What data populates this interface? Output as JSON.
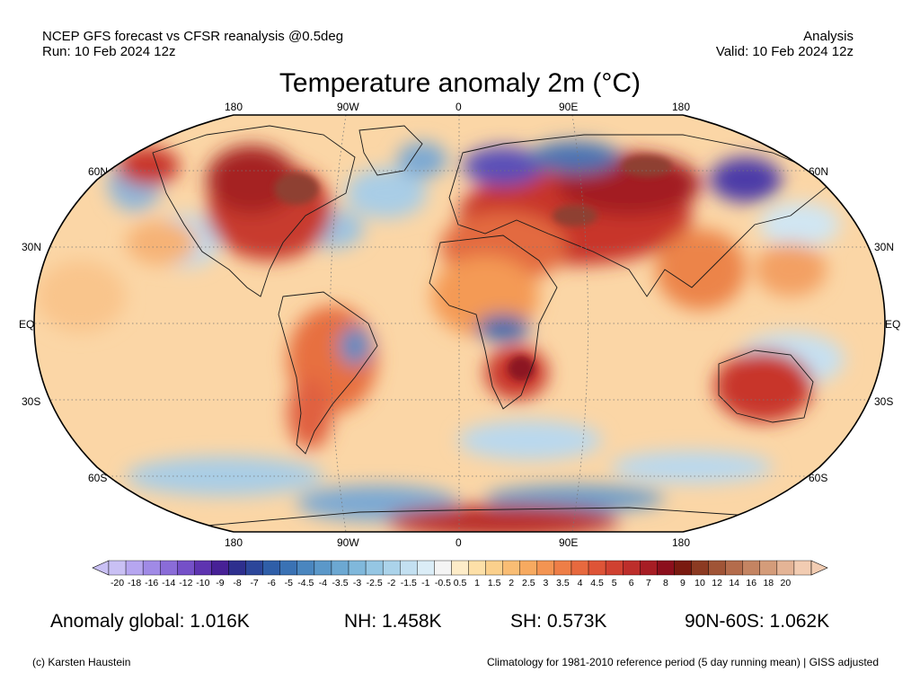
{
  "header": {
    "left_line1": "NCEP GFS forecast vs CFSR reanalysis @0.5deg",
    "left_line2": "Run: 10 Feb 2024 12z",
    "right_line1": "Analysis",
    "right_line2": "Valid: 10 Feb 2024 12z"
  },
  "title": "Temperature anomaly 2m (°C)",
  "map": {
    "projection": "Robinson",
    "lon_labels": [
      "180",
      "90W",
      "0",
      "90E",
      "180"
    ],
    "lat_labels": [
      "60N",
      "30N",
      "EQ",
      "30S",
      "60S"
    ],
    "grid_lines": "dotted"
  },
  "colorbar": {
    "ticks": [
      "-20",
      "-18",
      "-16",
      "-14",
      "-12",
      "-10",
      "-9",
      "-8",
      "-7",
      "-6",
      "-5",
      "-4.5",
      "-4",
      "-3.5",
      "-3",
      "-2.5",
      "-2",
      "-1.5",
      "-1",
      "-0.5",
      "0.5",
      "1",
      "1.5",
      "2",
      "2.5",
      "3",
      "3.5",
      "4",
      "4.5",
      "5",
      "6",
      "7",
      "8",
      "9",
      "10",
      "12",
      "14",
      "16",
      "18",
      "20"
    ],
    "colors": [
      "#c9c0f4",
      "#b6a6f0",
      "#a08ae6",
      "#8a6cd8",
      "#7550c8",
      "#5e34b0",
      "#472196",
      "#2e2f8e",
      "#2c469a",
      "#2f5ea8",
      "#3a72b4",
      "#4a86bf",
      "#5b98c9",
      "#6ca8d2",
      "#80b8db",
      "#95c6e3",
      "#abd3ea",
      "#c3e0f1",
      "#dbedf7",
      "#f4f4f4",
      "#fdecc8",
      "#fde0a8",
      "#fbd08c",
      "#f9bd74",
      "#f7aa60",
      "#f39452",
      "#ee7e47",
      "#e7693e",
      "#de5437",
      "#d04131",
      "#bd2e2b",
      "#a71d24",
      "#8c0f1c",
      "#7a1a10",
      "#8c3a22",
      "#a05436",
      "#b46c4c",
      "#c48462",
      "#d49c7a",
      "#e4b496",
      "#f2ccb2"
    ]
  },
  "stats": {
    "global": "Anomaly global: 1.016K",
    "nh": "NH: 1.458K",
    "sh": "SH: 0.573K",
    "arctic": "90N-60S: 1.062K"
  },
  "footer": {
    "left": "(c) Karsten Haustein",
    "right": "Climatology for 1981-2010 reference period (5 day running mean) | GISS adjusted"
  }
}
